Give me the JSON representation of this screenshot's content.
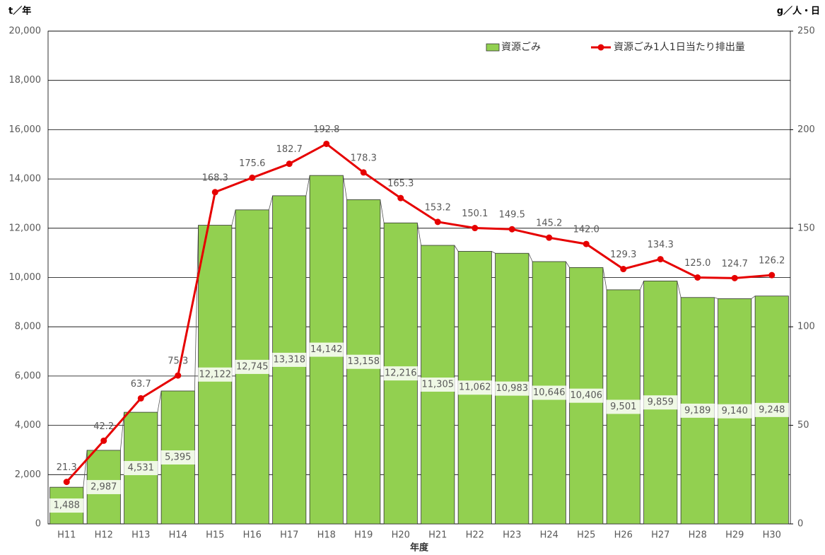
{
  "chart_data": {
    "type": "combo",
    "y_axis_label": "t／年",
    "y2_axis_label": "g／人・日",
    "x_axis_label": "年度",
    "categories": [
      "H11",
      "H12",
      "H13",
      "H14",
      "H15",
      "H16",
      "H17",
      "H18",
      "H19",
      "H20",
      "H21",
      "H22",
      "H23",
      "H24",
      "H25",
      "H26",
      "H27",
      "H28",
      "H29",
      "H30"
    ],
    "series": [
      {
        "name": "資源ごみ",
        "type": "bar",
        "color": "#92d050",
        "values": [
          1488,
          2987,
          4531,
          5395,
          12122,
          12745,
          13318,
          14142,
          13158,
          12216,
          11305,
          11062,
          10983,
          10646,
          10406,
          9501,
          9859,
          9189,
          9140,
          9248
        ],
        "value_labels": [
          "1,488",
          "2,987",
          "4,531",
          "5,395",
          "12,122",
          "12,745",
          "13,318",
          "14,142",
          "13,158",
          "12,216",
          "11,305",
          "11,062",
          "10,983",
          "10,646",
          "10,406",
          "9,501",
          "9,859",
          "9,189",
          "9,140",
          "9,248"
        ]
      },
      {
        "name": "資源ごみ1人1日当たり排出量",
        "type": "line",
        "axis": "y2",
        "color": "#e60000",
        "values": [
          21.3,
          42.2,
          63.7,
          75.3,
          168.3,
          175.6,
          182.7,
          192.8,
          178.3,
          165.3,
          153.2,
          150.1,
          149.5,
          145.2,
          142.0,
          129.3,
          134.3,
          125.0,
          124.7,
          126.2
        ],
        "value_labels": [
          "21.3",
          "42.2",
          "63.7",
          "75.3",
          "168.3",
          "175.6",
          "182.7",
          "192.8",
          "178.3",
          "165.3",
          "153.2",
          "150.1",
          "149.5",
          "145.2",
          "142.0",
          "129.3",
          "134.3",
          "125.0",
          "124.7",
          "126.2"
        ]
      }
    ],
    "ylim": [
      0,
      20000
    ],
    "yticks": [
      0,
      {
        "value": 2000,
        "label": "2,000"
      },
      {
        "value": 4000,
        "label": "4,000"
      },
      {
        "value": 6000,
        "label": "6,000"
      },
      {
        "value": 8000,
        "label": "8,000"
      },
      {
        "value": 10000,
        "label": "10,000"
      },
      {
        "value": 12000,
        "label": "12,000"
      },
      {
        "value": 14000,
        "label": "14,000"
      },
      {
        "value": 16000,
        "label": "16,000"
      },
      {
        "value": 18000,
        "label": "18,000"
      },
      {
        "value": 20000,
        "label": "20,000"
      }
    ],
    "y2lim": [
      0,
      250
    ],
    "y2ticks": [
      0,
      50,
      100,
      150,
      200,
      250
    ],
    "grid": true
  }
}
